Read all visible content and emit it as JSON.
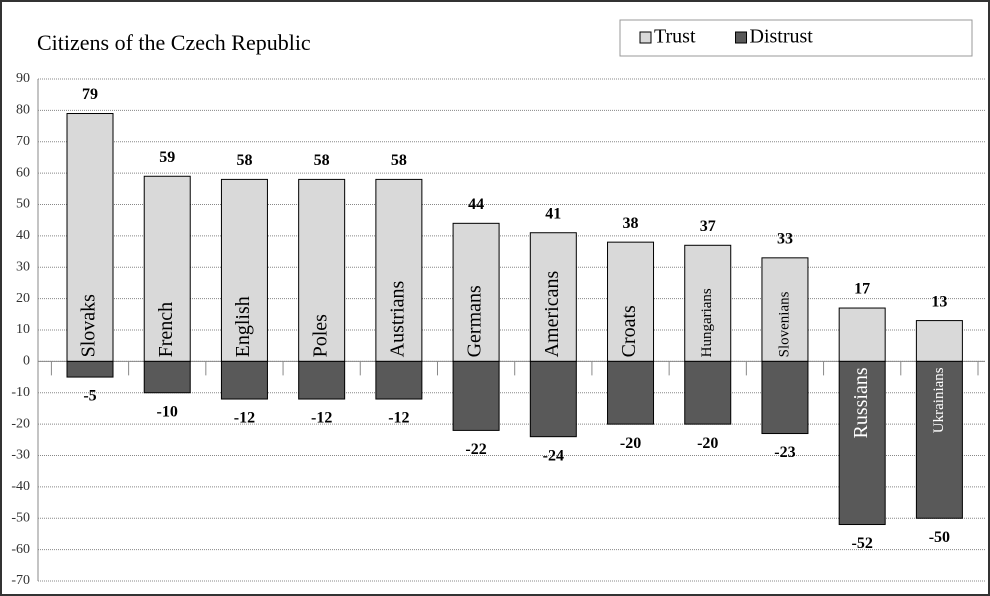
{
  "chart_data": {
    "type": "bar",
    "title": "Citizens of the Czech Republic",
    "categories": [
      "Slovaks",
      "French",
      "English",
      "Poles",
      "Austrians",
      "Germans",
      "Americans",
      "Croats",
      "Hungarians",
      "Slovenians",
      "Russians",
      "Ukrainians"
    ],
    "series": [
      {
        "name": "Trust",
        "color": "#d9d9d9",
        "values": [
          79,
          59,
          58,
          58,
          58,
          44,
          41,
          38,
          37,
          33,
          17,
          13
        ]
      },
      {
        "name": "Distrust",
        "color": "#595959",
        "values": [
          -5,
          -10,
          -12,
          -12,
          -12,
          -22,
          -24,
          -20,
          -20,
          -23,
          -52,
          -50
        ]
      }
    ],
    "ylim": [
      -70,
      90
    ],
    "yticks": [
      -70,
      -60,
      -50,
      -40,
      -30,
      -20,
      -10,
      0,
      10,
      20,
      30,
      40,
      50,
      60,
      70,
      80,
      90
    ],
    "grid": true,
    "legend": "top-right"
  }
}
